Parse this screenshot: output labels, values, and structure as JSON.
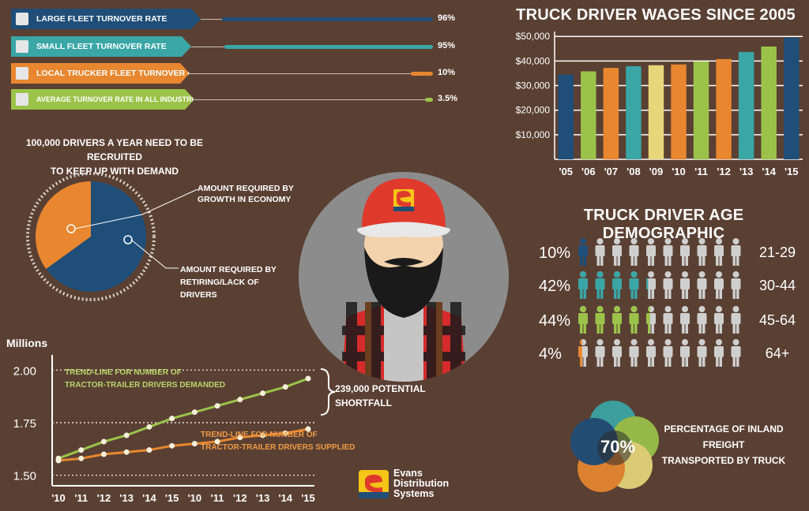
{
  "colors": {
    "background": "#5a4033",
    "navy": "#1f4e79",
    "teal": "#3aa6a6",
    "orange": "#e8872f",
    "green": "#9bc34a",
    "yellow": "#e7d77a",
    "red": "#e03a2c",
    "gray_figure": "#cfcfcf"
  },
  "turnover": [
    {
      "label": "Large fleet turnover rate",
      "value": "96%",
      "fraction": 0.96,
      "color": "#1f4e79"
    },
    {
      "label": "Small fleet turnover rate",
      "value": "95%",
      "fraction": 0.95,
      "color": "#3aa6a6"
    },
    {
      "label": "Local trucker fleet turnover rate",
      "value": "10%",
      "fraction": 0.1,
      "color": "#e8872f"
    },
    {
      "label": "Average turnover rate in all industries",
      "value": "3.5%",
      "fraction": 0.035,
      "color": "#9bc34a"
    }
  ],
  "recruit": {
    "heading_line1": "100,000 Drivers a year need to be recruited",
    "heading_line2": "to keep up with demand",
    "growth_label_line1": "Amount required by",
    "growth_label_line2": "growth in economy",
    "retiring_label_line1": "Amount required by",
    "retiring_label_line2": "retiring/lack of",
    "retiring_label_line3": "drivers"
  },
  "wages": {
    "title": "Truck Driver Wages Since 2005"
  },
  "age": {
    "title": "Truck Driver Age Demographic",
    "rows": [
      {
        "pct": "10%",
        "range": "21-29",
        "filled": 1,
        "color": "#1f4e79"
      },
      {
        "pct": "42%",
        "range": "30-44",
        "filled": 4.2,
        "color": "#3aa6a6"
      },
      {
        "pct": "44%",
        "range": "45-64",
        "filled": 4.4,
        "color": "#9bc34a"
      },
      {
        "pct": "4%",
        "range": "64+",
        "filled": 0.4,
        "color": "#e8872f"
      }
    ]
  },
  "freight": {
    "value": "70%",
    "label_line1": "Percentage of inland",
    "label_line2": "freight",
    "label_line3": "transported by truck"
  },
  "shortfall": {
    "demanded_line1": "Trend-line for number of",
    "demanded_line2": "tractor-trailer drivers demanded",
    "supplied_line1": "Trend-line for number of",
    "supplied_line2": "tractor-trailer drivers supplied",
    "gap_line1": "239,000 potential",
    "gap_line2": "shortfall"
  },
  "logo": {
    "line1": "Evans",
    "line2": "Distribution",
    "line3": "Systems"
  },
  "chart_data": [
    {
      "type": "bar",
      "title": "Truck Driver Wages Since 2005",
      "categories": [
        "'05",
        "'06",
        "'07",
        "'08",
        "'09",
        "'10",
        "'11",
        "'12",
        "'13",
        "'14",
        "'15"
      ],
      "values": [
        34500,
        35800,
        37200,
        37900,
        38300,
        38600,
        39800,
        40800,
        43700,
        45900,
        49500
      ],
      "colors": [
        "#1f4e79",
        "#9bc34a",
        "#e8872f",
        "#3aa6a6",
        "#e7d77a",
        "#e8872f",
        "#9bc34a",
        "#e8872f",
        "#3aa6a6",
        "#9bc34a",
        "#1f4e79"
      ],
      "yticks": [
        "$10,000",
        "$20,000",
        "$30,000",
        "$40,000",
        "$50,000"
      ],
      "ytick_values": [
        10000,
        20000,
        30000,
        40000,
        50000
      ],
      "ylim": [
        0,
        52000
      ],
      "grid": true
    },
    {
      "type": "line",
      "ylabel": "Millions",
      "x": [
        "'10",
        "'11",
        "'12",
        "'13",
        "'14",
        "'15",
        "'10",
        "'11",
        "'12",
        "'13",
        "'14",
        "'15"
      ],
      "yticks": [
        "2.00",
        "1.75",
        "1.50"
      ],
      "ytick_values": [
        2.0,
        1.75,
        1.5
      ],
      "ylim": [
        1.45,
        2.05
      ],
      "series": [
        {
          "values": [
            1.58,
            1.62,
            1.66,
            1.69,
            1.73,
            1.77,
            1.8,
            1.83,
            1.86,
            1.89,
            1.92,
            1.96
          ],
          "color": "#9bc34a"
        },
        {
          "values": [
            1.57,
            1.58,
            1.6,
            1.61,
            1.62,
            1.64,
            1.65,
            1.66,
            1.68,
            1.69,
            1.7,
            1.72
          ],
          "color": "#e8872f"
        }
      ]
    },
    {
      "type": "pie",
      "values": [
        35,
        65
      ],
      "colors": [
        "#e8872f",
        "#1f4e79"
      ]
    }
  ]
}
